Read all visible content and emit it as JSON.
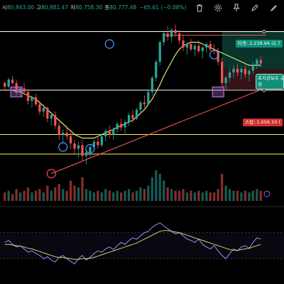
{
  "ohlc": {
    "open_label": "시",
    "open": "80,843.00",
    "high_label": "고",
    "high": "80,881.47",
    "low_label": "저",
    "low": "80,758.30",
    "close_label": "종",
    "close": "80,777.48",
    "change": "−65.61 (−0.08%)"
  },
  "toolbar": {
    "icons": [
      "trash-icon",
      "settings-icon",
      "pin-icon",
      "pencil-icon",
      "brush-icon"
    ]
  },
  "tags": {
    "target": "타겟: 2,238.94 (2.7",
    "stop": "스탑: 1,056.10 (",
    "note_line1": "포지션보유 순",
    "note_line2": "위"
  },
  "colors": {
    "bull": "#26a69a",
    "bear": "#ef5350",
    "ma": "#e6e27a",
    "trend": "#ff5a5a",
    "osc": "#9c8cff",
    "osc_signal": "#d9c96a",
    "circle": "#4a9eff",
    "square": "#b46bd6",
    "hline_white": "#ffffff",
    "hline_yellow": "#ffee58",
    "target_zone": "#0f5e4f",
    "stop_zone": "#5a1f24"
  },
  "chart_data": {
    "type": "candlestick",
    "title": "",
    "price_range": [
      0,
      100
    ],
    "candles": [
      [
        62,
        63,
        58,
        60
      ],
      [
        60,
        65,
        59,
        64
      ],
      [
        64,
        66,
        61,
        62
      ],
      [
        62,
        64,
        55,
        57
      ],
      [
        57,
        60,
        54,
        59
      ],
      [
        59,
        62,
        56,
        57
      ],
      [
        57,
        58,
        50,
        52
      ],
      [
        52,
        55,
        48,
        54
      ],
      [
        54,
        56,
        49,
        50
      ],
      [
        50,
        52,
        44,
        46
      ],
      [
        46,
        50,
        43,
        48
      ],
      [
        48,
        49,
        40,
        42
      ],
      [
        42,
        45,
        38,
        44
      ],
      [
        44,
        46,
        36,
        38
      ],
      [
        38,
        40,
        30,
        33
      ],
      [
        33,
        36,
        28,
        34
      ],
      [
        34,
        38,
        30,
        32
      ],
      [
        32,
        34,
        25,
        28
      ],
      [
        28,
        30,
        22,
        25
      ],
      [
        25,
        29,
        20,
        27
      ],
      [
        27,
        30,
        18,
        21
      ],
      [
        21,
        24,
        16,
        23
      ],
      [
        23,
        27,
        20,
        26
      ],
      [
        26,
        30,
        24,
        29
      ],
      [
        29,
        32,
        25,
        27
      ],
      [
        27,
        33,
        26,
        32
      ],
      [
        32,
        36,
        29,
        35
      ],
      [
        35,
        38,
        31,
        33
      ],
      [
        33,
        37,
        30,
        36
      ],
      [
        36,
        40,
        34,
        39
      ],
      [
        39,
        42,
        35,
        37
      ],
      [
        37,
        41,
        33,
        40
      ],
      [
        40,
        45,
        38,
        44
      ],
      [
        44,
        47,
        40,
        42
      ],
      [
        42,
        48,
        41,
        47
      ],
      [
        47,
        52,
        45,
        51
      ],
      [
        51,
        55,
        48,
        50
      ],
      [
        50,
        58,
        49,
        57
      ],
      [
        57,
        66,
        55,
        65
      ],
      [
        65,
        75,
        63,
        74
      ],
      [
        74,
        86,
        72,
        85
      ],
      [
        85,
        92,
        83,
        90
      ],
      [
        90,
        94,
        86,
        88
      ],
      [
        88,
        93,
        85,
        92
      ],
      [
        92,
        95,
        88,
        90
      ],
      [
        90,
        92,
        84,
        86
      ],
      [
        86,
        89,
        80,
        82
      ],
      [
        82,
        85,
        78,
        84
      ],
      [
        84,
        87,
        80,
        81
      ],
      [
        81,
        84,
        77,
        83
      ],
      [
        83,
        86,
        79,
        80
      ],
      [
        80,
        83,
        76,
        82
      ],
      [
        82,
        85,
        79,
        84
      ],
      [
        84,
        86,
        80,
        81
      ],
      [
        81,
        84,
        78,
        80
      ],
      [
        80,
        82,
        72,
        74
      ],
      [
        74,
        76,
        60,
        62
      ],
      [
        62,
        66,
        58,
        65
      ],
      [
        65,
        70,
        63,
        68
      ],
      [
        68,
        72,
        65,
        70
      ],
      [
        70,
        73,
        66,
        68
      ],
      [
        68,
        71,
        64,
        70
      ],
      [
        70,
        72,
        65,
        67
      ],
      [
        67,
        70,
        63,
        69
      ],
      [
        69,
        74,
        67,
        72
      ],
      [
        72,
        76,
        70,
        75
      ],
      [
        75,
        77,
        71,
        73
      ]
    ],
    "ma": [
      58,
      58,
      58,
      57,
      57,
      56,
      55,
      54,
      53,
      51,
      49,
      47,
      45,
      43,
      41,
      39,
      37,
      35,
      33,
      32,
      31,
      31,
      31,
      31,
      32,
      33,
      34,
      35,
      36,
      37,
      38,
      39,
      40,
      41,
      43,
      45,
      47,
      50,
      53,
      57,
      61,
      66,
      70,
      74,
      78,
      81,
      83,
      84,
      85,
      85,
      85,
      84,
      83,
      82,
      81,
      80,
      79,
      78,
      77,
      76,
      75,
      74,
      73,
      72,
      72,
      72,
      72
    ],
    "horizontal_levels": [
      {
        "price": 91,
        "color": "white"
      },
      {
        "price": 58,
        "color": "white"
      },
      {
        "price": 33,
        "color": "yellow"
      },
      {
        "price": 22,
        "color": "yellow"
      }
    ],
    "volume": [
      5,
      6,
      4,
      7,
      5,
      6,
      8,
      5,
      6,
      7,
      5,
      9,
      6,
      8,
      10,
      7,
      6,
      12,
      9,
      8,
      14,
      7,
      6,
      5,
      6,
      5,
      7,
      6,
      5,
      6,
      5,
      6,
      7,
      5,
      6,
      8,
      7,
      9,
      14,
      18,
      16,
      12,
      8,
      7,
      6,
      6,
      7,
      5,
      6,
      5,
      6,
      5,
      6,
      5,
      5,
      7,
      16,
      9,
      7,
      6,
      6,
      5,
      6,
      5,
      6,
      7,
      6
    ],
    "oscillator": [
      55,
      58,
      52,
      48,
      50,
      45,
      40,
      42,
      38,
      35,
      30,
      33,
      28,
      25,
      32,
      35,
      30,
      26,
      22,
      30,
      35,
      28,
      32,
      38,
      42,
      40,
      45,
      48,
      44,
      50,
      55,
      52,
      58,
      62,
      60,
      65,
      70,
      72,
      78,
      82,
      85,
      80,
      76,
      72,
      68,
      70,
      65,
      60,
      58,
      55,
      60,
      52,
      48,
      45,
      50,
      42,
      35,
      30,
      38,
      45,
      42,
      48,
      50,
      46,
      55,
      62,
      60
    ],
    "oscillator_signal": [
      52,
      52,
      51,
      50,
      49,
      48,
      46,
      45,
      43,
      41,
      39,
      37,
      35,
      33,
      32,
      32,
      31,
      30,
      29,
      29,
      30,
      30,
      31,
      32,
      34,
      36,
      38,
      40,
      42,
      44,
      46,
      48,
      50,
      52,
      54,
      57,
      60,
      63,
      66,
      69,
      72,
      73,
      73,
      72,
      71,
      70,
      68,
      66,
      64,
      62,
      60,
      58,
      56,
      54,
      52,
      50,
      48,
      46,
      44,
      43,
      43,
      44,
      45,
      46,
      48,
      50,
      52
    ]
  }
}
